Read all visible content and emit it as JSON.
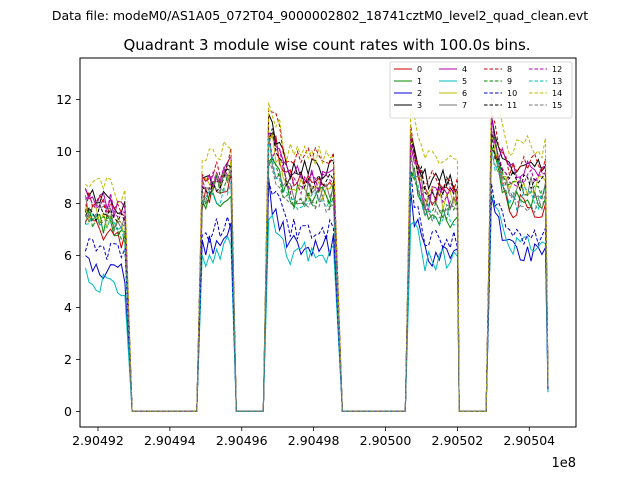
{
  "figure": {
    "suptitle": "Data file: modeM0/AS1A05_072T04_9000002802_18741cztM0_level2_quad_clean.evt"
  },
  "chart_data": {
    "type": "line",
    "title": "Quadrant 3 module wise count rates with 100.0s bins.",
    "xlabel": "",
    "ylabel": "",
    "x_offset_label": "1e8",
    "xlim": [
      290491.5,
      290505.3
    ],
    "ylim": [
      -0.6,
      13.6
    ],
    "x_units_note": "x values in units of 1000 s (axis shows value/1e5 with 1e8 offset)",
    "x_ticks": [
      290492,
      290494,
      290496,
      290498,
      290500,
      290502,
      290504
    ],
    "x_tick_labels": [
      "2.90492",
      "2.90494",
      "2.90496",
      "2.90498",
      "2.90500",
      "2.90502",
      "2.90504"
    ],
    "y_ticks": [
      0,
      2,
      4,
      6,
      8,
      10,
      12
    ],
    "y_tick_labels": [
      "0",
      "2",
      "4",
      "6",
      "8",
      "10",
      "12"
    ],
    "segments": [
      {
        "start": 290491.65,
        "end": 290492.8
      },
      {
        "start": 290494.9,
        "end": 290495.75
      },
      {
        "start": 290496.75,
        "end": 290498.6
      },
      {
        "start": 290500.7,
        "end": 290501.95
      },
      {
        "start": 290502.95,
        "end": 290504.5
      }
    ],
    "segment_gap_ends": [
      290492.95,
      290494.75,
      290495.85,
      290496.6,
      290498.8,
      290500.55,
      290502.05,
      290502.8
    ],
    "series": [
      {
        "name": "0",
        "color": "#cc0000",
        "dash": "solid",
        "levels": [
          6.9,
          8.2,
          9.0,
          8.3,
          7.9
        ]
      },
      {
        "name": "1",
        "color": "#008800",
        "dash": "solid",
        "levels": [
          7.2,
          7.7,
          8.3,
          7.5,
          8.1
        ]
      },
      {
        "name": "2",
        "color": "#0000cc",
        "dash": "solid",
        "levels": [
          5.5,
          6.2,
          6.4,
          6.0,
          6.2
        ]
      },
      {
        "name": "3",
        "color": "#000000",
        "dash": "solid",
        "levels": [
          8.0,
          8.6,
          9.3,
          8.9,
          9.3
        ]
      },
      {
        "name": "4",
        "color": "#b000b0",
        "dash": "solid",
        "levels": [
          8.0,
          8.7,
          9.0,
          8.2,
          9.3
        ]
      },
      {
        "name": "5",
        "color": "#00bbbb",
        "dash": "solid",
        "levels": [
          4.9,
          5.7,
          6.1,
          5.8,
          6.3
        ]
      },
      {
        "name": "6",
        "color": "#bbbb00",
        "dash": "solid",
        "levels": [
          7.3,
          8.5,
          8.6,
          8.2,
          8.7
        ]
      },
      {
        "name": "7",
        "color": "#777777",
        "dash": "solid",
        "levels": [
          7.6,
          8.4,
          8.4,
          8.1,
          8.6
        ]
      },
      {
        "name": "8",
        "color": "#cc0000",
        "dash": "dashed",
        "levels": [
          7.8,
          8.9,
          9.8,
          8.9,
          9.5
        ]
      },
      {
        "name": "9",
        "color": "#008800",
        "dash": "dashed",
        "levels": [
          7.3,
          8.3,
          8.2,
          7.8,
          8.4
        ]
      },
      {
        "name": "10",
        "color": "#0000cc",
        "dash": "dashed",
        "levels": [
          6.2,
          6.6,
          7.0,
          6.6,
          6.8
        ]
      },
      {
        "name": "11",
        "color": "#000000",
        "dash": "dashed",
        "levels": [
          7.5,
          8.5,
          8.9,
          8.6,
          8.9
        ]
      },
      {
        "name": "12",
        "color": "#b000b0",
        "dash": "dashed",
        "levels": [
          8.1,
          8.8,
          8.8,
          8.3,
          8.9
        ]
      },
      {
        "name": "13",
        "color": "#00bbbb",
        "dash": "dashed",
        "levels": [
          7.1,
          7.9,
          8.1,
          7.6,
          8.2
        ]
      },
      {
        "name": "14",
        "color": "#bbbb00",
        "dash": "dashed",
        "levels": [
          8.6,
          9.6,
          9.9,
          9.8,
          10.2
        ]
      },
      {
        "name": "15",
        "color": "#777777",
        "dash": "dashed",
        "levels": [
          7.4,
          8.3,
          8.1,
          7.6,
          8.1
        ]
      }
    ],
    "legend_position": "top-right",
    "legend_columns": 4
  }
}
